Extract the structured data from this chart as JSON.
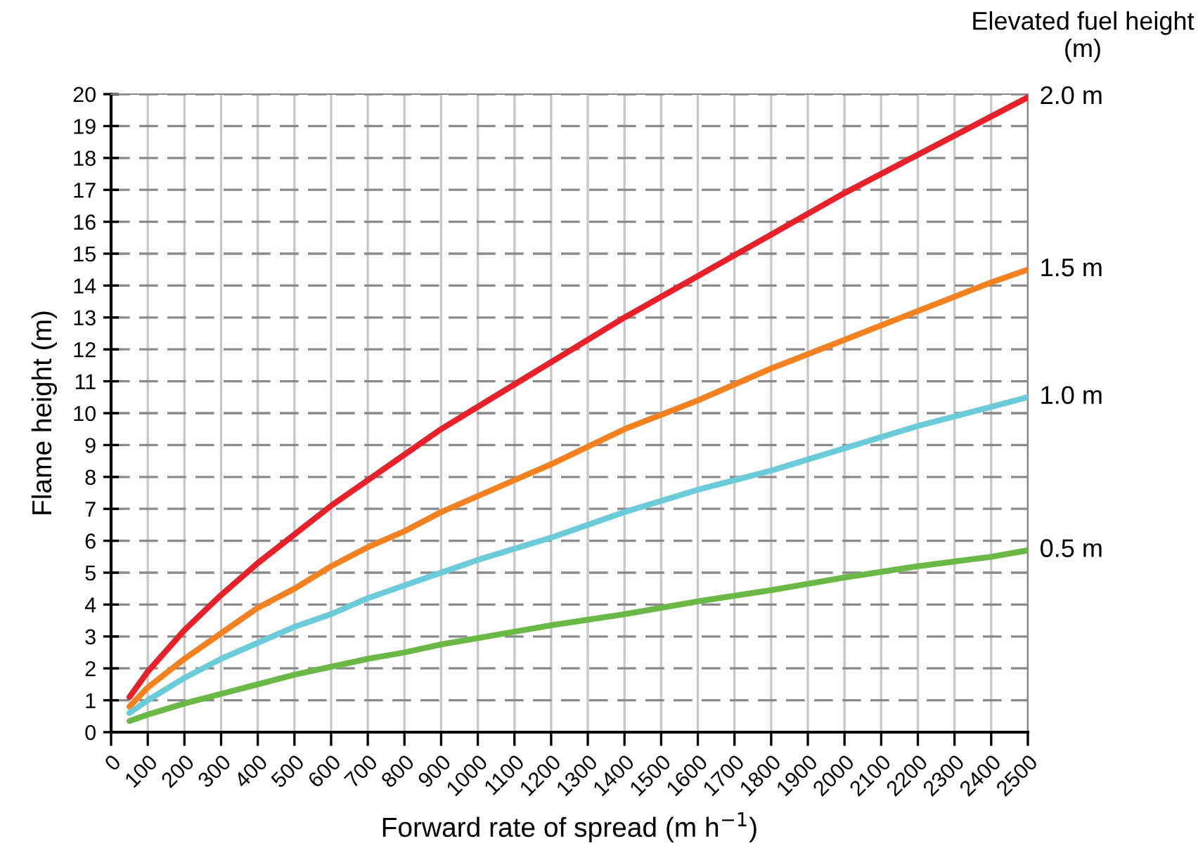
{
  "chart_data": {
    "type": "line",
    "xlabel": "Forward rate of spread (m h$^{−1}$)",
    "ylabel": "Flame height (m)",
    "legend_title": "Elevated fuel height\n(m)",
    "x": [
      50,
      100,
      200,
      300,
      400,
      500,
      600,
      700,
      800,
      900,
      1000,
      1200,
      1400,
      1600,
      1800,
      2000,
      2200,
      2400,
      2500
    ],
    "series": [
      {
        "name": "2.0 m",
        "color": "#e8202a",
        "values": [
          1.1,
          1.9,
          3.2,
          4.3,
          5.3,
          6.2,
          7.1,
          7.9,
          8.7,
          9.5,
          10.2,
          11.6,
          13.0,
          14.3,
          15.6,
          16.9,
          18.1,
          19.3,
          19.9
        ]
      },
      {
        "name": "1.5 m",
        "color": "#f4811f",
        "values": [
          0.8,
          1.4,
          2.3,
          3.1,
          3.9,
          4.5,
          5.2,
          5.8,
          6.3,
          6.9,
          7.4,
          8.4,
          9.5,
          10.4,
          11.4,
          12.3,
          13.2,
          14.1,
          14.5
        ]
      },
      {
        "name": "1.0 m",
        "color": "#6ccbd9",
        "values": [
          0.6,
          1.0,
          1.7,
          2.3,
          2.8,
          3.3,
          3.7,
          4.2,
          4.6,
          5.0,
          5.4,
          6.1,
          6.9,
          7.6,
          8.2,
          8.9,
          9.6,
          10.2,
          10.5
        ]
      },
      {
        "name": "0.5 m",
        "color": "#6ab845",
        "values": [
          0.35,
          0.55,
          0.9,
          1.2,
          1.5,
          1.8,
          2.05,
          2.3,
          2.5,
          2.75,
          2.95,
          3.35,
          3.7,
          4.1,
          4.45,
          4.85,
          5.2,
          5.5,
          5.7
        ]
      }
    ],
    "xlim": [
      0,
      2500
    ],
    "xticks": [
      0,
      100,
      200,
      300,
      400,
      500,
      600,
      700,
      800,
      900,
      1000,
      1100,
      1200,
      1300,
      1400,
      1500,
      1600,
      1700,
      1800,
      1900,
      2000,
      2100,
      2200,
      2300,
      2400,
      2500
    ],
    "ylim": [
      0,
      20
    ],
    "yticks": [
      0,
      1,
      2,
      3,
      4,
      5,
      6,
      7,
      8,
      9,
      10,
      11,
      12,
      13,
      14,
      15,
      16,
      17,
      18,
      19,
      20
    ],
    "grid": true,
    "marker": "none",
    "line_style": "solid"
  }
}
